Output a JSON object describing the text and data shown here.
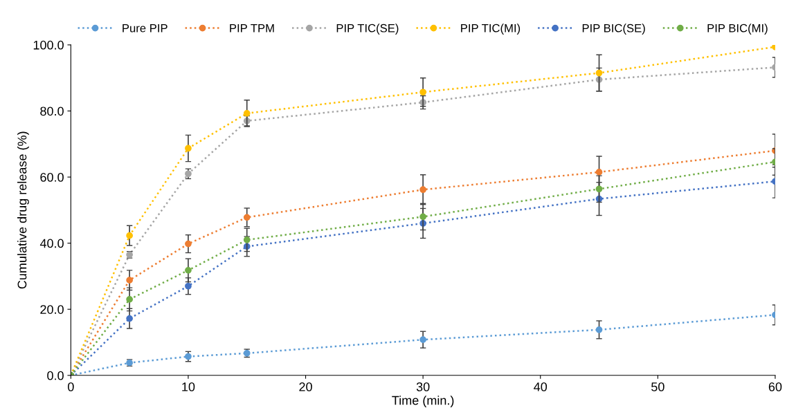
{
  "chart_data": {
    "type": "line",
    "xlabel": "Time (min.)",
    "ylabel": "Cumulative drug release (%)",
    "x": [
      0,
      5,
      10,
      15,
      30,
      45,
      60
    ],
    "series": [
      {
        "name": "Pure PIP",
        "color": "#5b9bd5",
        "values": [
          0,
          3.8,
          5.7,
          6.7,
          10.8,
          13.8,
          18.3
        ],
        "errors": [
          null,
          1,
          1.5,
          1.2,
          2.5,
          2.7,
          3
        ]
      },
      {
        "name": "PIP TPM",
        "color": "#ed7d31",
        "values": [
          0,
          28.8,
          39.8,
          47.8,
          56.2,
          61.5,
          68
        ],
        "errors": [
          null,
          3,
          2.7,
          2.8,
          4.5,
          4.8,
          5
        ]
      },
      {
        "name": "PIP TIC(SE)",
        "color": "#a5a5a5",
        "values": [
          0,
          36.5,
          61,
          77,
          82.6,
          89.5,
          93.2
        ],
        "errors": [
          null,
          1,
          1.5,
          1.5,
          2,
          3.5,
          3
        ]
      },
      {
        "name": "PIP TIC(MI)",
        "color": "#ffc000",
        "values": [
          0,
          42.3,
          68.7,
          79.3,
          85.7,
          91.5,
          99.4
        ],
        "errors": [
          null,
          3,
          4,
          4,
          4.3,
          5.5,
          null
        ]
      },
      {
        "name": "PIP BIC(SE)",
        "color": "#4472c4",
        "values": [
          0,
          17.2,
          27,
          39,
          46,
          53.4,
          58.7
        ],
        "errors": [
          null,
          3,
          2.5,
          3,
          4.5,
          5,
          5
        ]
      },
      {
        "name": "PIP BIC(MI)",
        "color": "#70ad47",
        "values": [
          0,
          23,
          31.8,
          41,
          48,
          56.4,
          64.6
        ],
        "errors": [
          null,
          3.5,
          3.5,
          3.5,
          4,
          4,
          4
        ]
      }
    ],
    "xlim": [
      0,
      60
    ],
    "xticks": [
      0,
      10,
      20,
      30,
      40,
      50,
      60
    ],
    "ylim": [
      0,
      100
    ],
    "yticks": [
      {
        "value": 0,
        "label": "0.0"
      },
      {
        "value": 20,
        "label": "20.0"
      },
      {
        "value": 40,
        "label": "40.0"
      },
      {
        "value": 60,
        "label": "60.0"
      },
      {
        "value": 80,
        "label": "80.0"
      },
      {
        "value": 100,
        "label": "100.0"
      }
    ],
    "legend": "top",
    "marker": "circle",
    "line_style": "dotted"
  }
}
